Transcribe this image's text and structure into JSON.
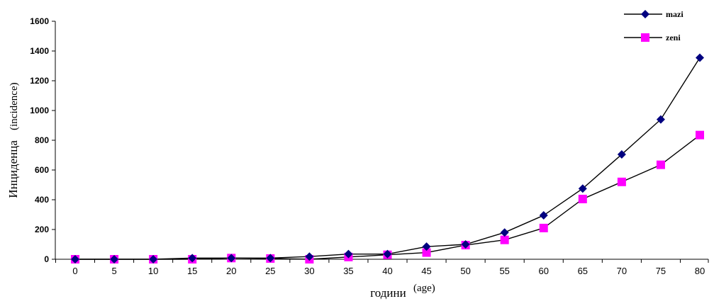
{
  "chart_data": {
    "type": "line",
    "x": [
      0,
      5,
      10,
      15,
      20,
      25,
      30,
      35,
      40,
      45,
      50,
      55,
      60,
      65,
      70,
      75,
      80
    ],
    "series": [
      {
        "name": "mazi",
        "color": "#000080",
        "marker": "diamond",
        "values": [
          0,
          0,
          0,
          8,
          8,
          8,
          18,
          35,
          35,
          85,
          100,
          180,
          295,
          475,
          705,
          940,
          1355
        ]
      },
      {
        "name": "zeni",
        "color": "#ff00ff",
        "marker": "square",
        "values": [
          0,
          0,
          0,
          0,
          8,
          5,
          0,
          15,
          30,
          45,
          95,
          130,
          210,
          405,
          520,
          635,
          835
        ]
      }
    ],
    "xlabel": "години",
    "xlabel_suffix": "(age)",
    "ylabel": "Инциденца",
    "ylabel_suffix": "(incidence)",
    "ylim": [
      0,
      1600
    ],
    "yticks": [
      0,
      200,
      400,
      600,
      800,
      1000,
      1200,
      1400,
      1600
    ],
    "grid": false,
    "legend_position": "top-right",
    "line_color": "#000000"
  }
}
